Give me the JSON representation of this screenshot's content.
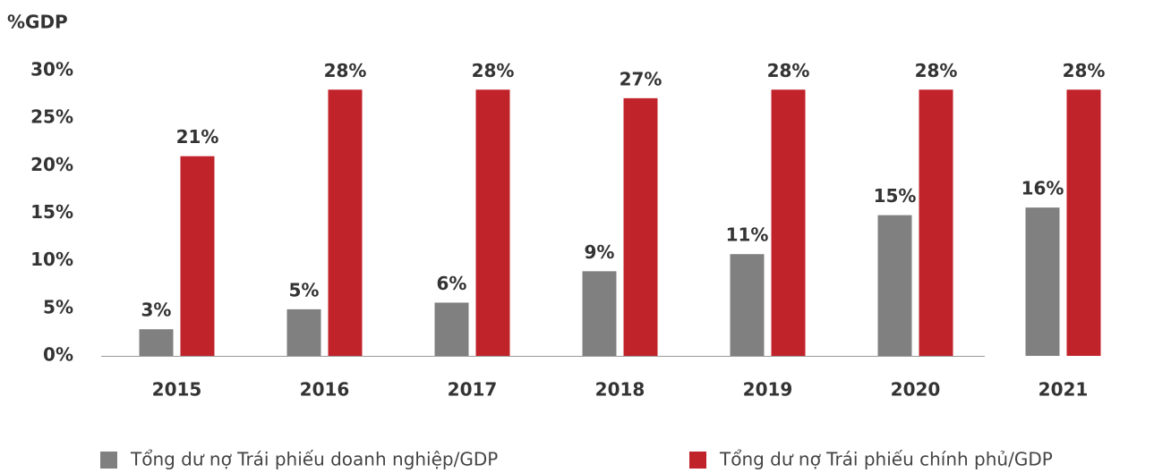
{
  "chart_data": {
    "type": "bar",
    "y_axis_label": "%GDP",
    "categories": [
      "2015",
      "2016",
      "2017",
      "2018",
      "2019",
      "2020",
      "2021"
    ],
    "series": [
      {
        "name": "Tổng dư nợ Trái phiếu doanh nghiệp/GDP",
        "color": "#808080",
        "values": [
          2.8,
          4.9,
          5.6,
          8.9,
          10.7,
          14.8,
          15.6
        ],
        "value_labels": [
          "3%",
          "5%",
          "6%",
          "9%",
          "11%",
          "15%",
          "16%"
        ]
      },
      {
        "name": "Tổng dư nợ Trái phiếu chính phủ/GDP",
        "color": "#c1232b",
        "values": [
          21.0,
          28.0,
          28.0,
          27.1,
          28.0,
          28.0,
          28.0
        ],
        "value_labels": [
          "21%",
          "28%",
          "28%",
          "27%",
          "28%",
          "28%",
          "28%"
        ]
      }
    ],
    "ylim": [
      0,
      30
    ],
    "yticks": [
      {
        "value": 0,
        "label": "0%"
      },
      {
        "value": 5,
        "label": "5%"
      },
      {
        "value": 10,
        "label": "10%"
      },
      {
        "value": 15,
        "label": "15%"
      },
      {
        "value": 20,
        "label": "20%"
      },
      {
        "value": 25,
        "label": "25%"
      },
      {
        "value": 30,
        "label": "30%"
      }
    ],
    "grid": false,
    "legend": "bottom"
  }
}
